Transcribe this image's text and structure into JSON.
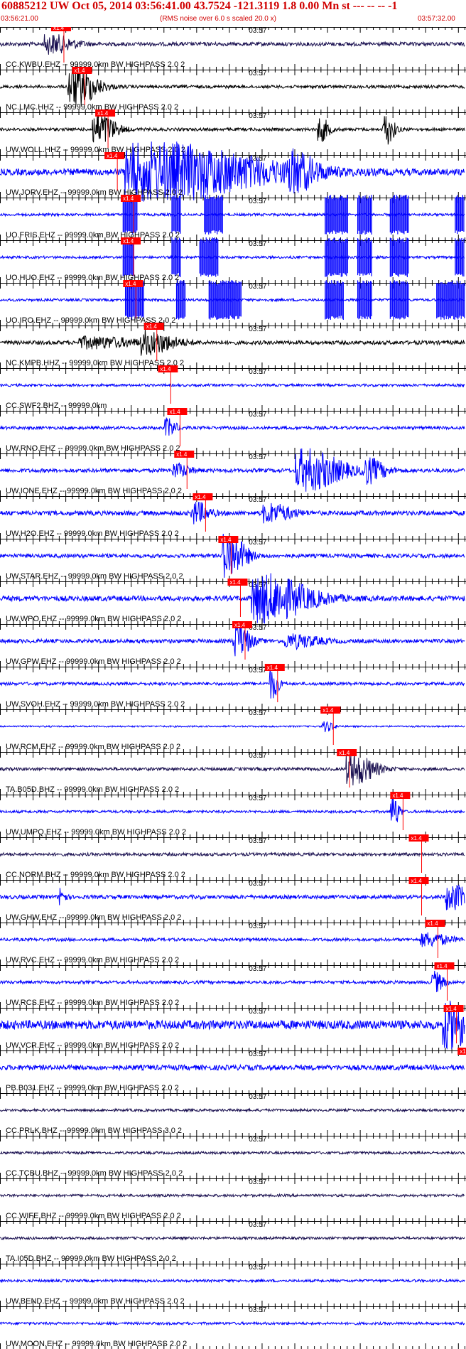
{
  "header": {
    "title": "60885212 UW Oct 05, 2014 03:56:41.00    43.7524 -121.3119  1.8 0.00 Mn st --- -- --   -1",
    "time_start": "03:56:21.00",
    "note": "(RMS noise over 6.0 s scaled 20.0 x)",
    "time_end": "03:57:32.00"
  },
  "minute_label": "03:57",
  "pick_label": "x1.4",
  "colors": {
    "trace_blue": "#0000ff",
    "trace_black": "#000000",
    "trace_navy": "#1a1050",
    "pick_red": "#ff0000",
    "bg": "#ffffff"
  },
  "traces": [
    {
      "label": "CC.KWBU.EHZ -- 99999.0km BW  HIGHPASS  2.0  2",
      "color": "navy",
      "amp": 0.15,
      "pick": 0.11,
      "events": [
        [
          0.11,
          0.7,
          0.05
        ]
      ]
    },
    {
      "label": "NC.LMC.HHZ -- 99999.0km BW  HIGHPASS  2.0  2",
      "color": "black",
      "amp": 0.12,
      "pick": 0.155,
      "events": [
        [
          0.16,
          1.6,
          0.05
        ]
      ]
    },
    {
      "label": "UW.WOLL.HHZ -- 99999.0km BW  HIGHPASS  2.0  2",
      "color": "black",
      "amp": 0.12,
      "pick": 0.205,
      "events": [
        [
          0.21,
          1.3,
          0.04
        ],
        [
          0.69,
          0.9,
          0.02
        ],
        [
          0.83,
          1.2,
          0.02
        ]
      ]
    },
    {
      "label": "UW.JORV.EHZ -- 99999.0km BW  HIGHPASS  2.0  2",
      "color": "blue",
      "amp": 0.25,
      "pick": 0.225,
      "events": [
        [
          0.34,
          2.2,
          0.24
        ],
        [
          0.63,
          1.2,
          0.05
        ]
      ]
    },
    {
      "label": "UO.FRIS.EHZ -- 99999.0km BW  HIGHPASS  2.0  2",
      "color": "blue",
      "amp": 0.1,
      "pick": 0.26,
      "blocks": [
        [
          0.265,
          0.295
        ],
        [
          0.37,
          0.39
        ],
        [
          0.44,
          0.48
        ],
        [
          0.7,
          0.75
        ],
        [
          0.77,
          0.8
        ],
        [
          0.84,
          0.88
        ],
        [
          0.98,
          1.0
        ]
      ]
    },
    {
      "label": "UO.HUO.EHZ -- 99999.0km BW  HIGHPASS  2.0  2",
      "color": "blue",
      "amp": 0.1,
      "pick": 0.26,
      "blocks": [
        [
          0.265,
          0.29
        ],
        [
          0.37,
          0.39
        ],
        [
          0.43,
          0.47
        ],
        [
          0.7,
          0.75
        ],
        [
          0.77,
          0.8
        ],
        [
          0.84,
          0.88
        ],
        [
          0.98,
          1.0
        ]
      ]
    },
    {
      "label": "UO.IRO.EHZ -- 99999.0km BW  HIGHPASS  2.0  2",
      "color": "blue",
      "amp": 0.1,
      "pick": 0.265,
      "blocks": [
        [
          0.27,
          0.31
        ],
        [
          0.38,
          0.4
        ],
        [
          0.45,
          0.52
        ],
        [
          0.7,
          0.74
        ],
        [
          0.77,
          0.8
        ],
        [
          0.84,
          0.88
        ],
        [
          0.94,
          1.0
        ]
      ]
    },
    {
      "label": "NC.KMPB.HHZ -- 99999.0km BW  HIGHPASS  2.0  2",
      "color": "black",
      "amp": 0.15,
      "pick": 0.31,
      "events": [
        [
          0.32,
          0.8,
          0.06
        ],
        [
          0.2,
          0.4,
          0.1
        ]
      ]
    },
    {
      "label": "CC.SWF2.BHZ -- 99999.0km",
      "color": "blue",
      "amp": 0.1,
      "pick": 0.34,
      "events": []
    },
    {
      "label": "UW.RNO.EHZ -- 99999.0km BW  HIGHPASS  2.0  2",
      "color": "blue",
      "amp": 0.12,
      "pick": 0.36,
      "events": [
        [
          0.36,
          0.7,
          0.02
        ]
      ]
    },
    {
      "label": "UW.IONE.EHZ -- 99999.0km BW  HIGHPASS  2.0  2",
      "color": "blue",
      "amp": 0.15,
      "pick": 0.375,
      "events": [
        [
          0.38,
          0.5,
          0.03
        ],
        [
          0.66,
          1.6,
          0.08
        ],
        [
          0.79,
          0.9,
          0.04
        ]
      ]
    },
    {
      "label": "UW.H2O.EHZ -- 99999.0km BW  HIGHPASS  2.0  2",
      "color": "blue",
      "amp": 0.18,
      "pick": 0.415,
      "events": [
        [
          0.42,
          0.8,
          0.03
        ],
        [
          0.58,
          0.7,
          0.05
        ]
      ]
    },
    {
      "label": "UW.STAR.EHZ -- 99999.0km BW  HIGHPASS  2.0  2",
      "color": "blue",
      "amp": 0.15,
      "pick": 0.47,
      "events": [
        [
          0.49,
          1.8,
          0.04
        ]
      ]
    },
    {
      "label": "UW.WPO.EHZ -- 99999.0km BW  HIGHPASS  2.0  2",
      "color": "blue",
      "amp": 0.2,
      "pick": 0.49,
      "events": [
        [
          0.57,
          1.8,
          0.1
        ]
      ]
    },
    {
      "label": "UW.GPW.EHZ -- 99999.0km BW  HIGHPASS  2.0  2",
      "color": "blue",
      "amp": 0.15,
      "pick": 0.5,
      "events": [
        [
          0.51,
          1.4,
          0.03
        ],
        [
          0.63,
          0.5,
          0.06
        ]
      ]
    },
    {
      "label": "UW.SVOH.EHZ -- 99999.0km BW  HIGHPASS  2.0  2",
      "color": "blue",
      "amp": 0.12,
      "pick": 0.57,
      "events": [
        [
          0.585,
          1.2,
          0.015
        ]
      ]
    },
    {
      "label": "UW.RCM.EHZ -- 99999.0km BW  HIGHPASS  2.0  2",
      "color": "blue",
      "amp": 0.06,
      "pick": 0.69,
      "events": [
        [
          0.7,
          0.4,
          0.02
        ]
      ]
    },
    {
      "label": "TA.B05D.BHZ -- 99999.0km BW  HIGHPASS  2.0  2",
      "color": "navy",
      "amp": 0.12,
      "pick": 0.725,
      "events": [
        [
          0.76,
          1.2,
          0.05
        ]
      ]
    },
    {
      "label": "UW.UMPQ.EHZ -- 99999.0km BW  HIGHPASS  2.0  2",
      "color": "blue",
      "amp": 0.1,
      "pick": 0.84,
      "events": [
        [
          0.845,
          1.3,
          0.015
        ]
      ]
    },
    {
      "label": "CC.NORM.BHZ -- 99999.0km BW  HIGHPASS  2.0  2",
      "color": "navy",
      "amp": 0.12,
      "pick": 0.88,
      "events": []
    },
    {
      "label": "UW.GHW.EHZ -- 99999.0km BW  HIGHPASS  2.0  2",
      "color": "blue",
      "amp": 0.15,
      "pick": 0.88,
      "events": [
        [
          0.13,
          0.8,
          0.01
        ],
        [
          0.97,
          1.0,
          0.04
        ]
      ]
    },
    {
      "label": "UW.RVC.EHZ -- 99999.0km BW  HIGHPASS  2.0  2",
      "color": "blue",
      "amp": 0.12,
      "pick": 0.915,
      "events": [
        [
          0.92,
          0.5,
          0.05
        ]
      ]
    },
    {
      "label": "UW.RCS.EHZ -- 99999.0km BW  HIGHPASS  2.0  2",
      "color": "blue",
      "amp": 0.12,
      "pick": 0.935,
      "events": [
        [
          0.935,
          0.8,
          0.02
        ]
      ]
    },
    {
      "label": "UW.VCR.EHZ -- 99999.0km BW  HIGHPASS  2.0  2",
      "color": "blue",
      "amp": 0.35,
      "pick": 0.955,
      "events": [
        [
          0.97,
          1.6,
          0.06
        ]
      ]
    },
    {
      "label": "PB.B031.EHZ -- 99999.0km BW  HIGHPASS  2.0  2",
      "color": "blue",
      "amp": 0.2,
      "pick": 0.985,
      "events": []
    },
    {
      "label": "CC.PRLK.BHZ -- 99999.0km BW  HIGHPASS  3.0  2",
      "color": "navy",
      "amp": 0.1,
      "events": []
    },
    {
      "label": "CC.TCBU.BHZ -- 99999.0km BW  HIGHPASS  2.0  2",
      "color": "navy",
      "amp": 0.1,
      "events": []
    },
    {
      "label": "CC.WIFE.BHZ -- 99999.0km BW  HIGHPASS  2.0  2",
      "color": "navy",
      "amp": 0.1,
      "events": []
    },
    {
      "label": "TA.I05D.BHZ -- 99999.0km BW  HIGHPASS  2.0  2",
      "color": "navy",
      "amp": 0.1,
      "events": []
    },
    {
      "label": "UW.BEND.EHZ -- 99999.0km BW  HIGHPASS  2.0  2",
      "color": "blue",
      "amp": 0.1,
      "events": []
    },
    {
      "label": "UW.MOON.EHZ -- 99999.0km BW  HIGHPASS  2.0  2",
      "color": "blue",
      "amp": 0.1,
      "events": []
    }
  ]
}
